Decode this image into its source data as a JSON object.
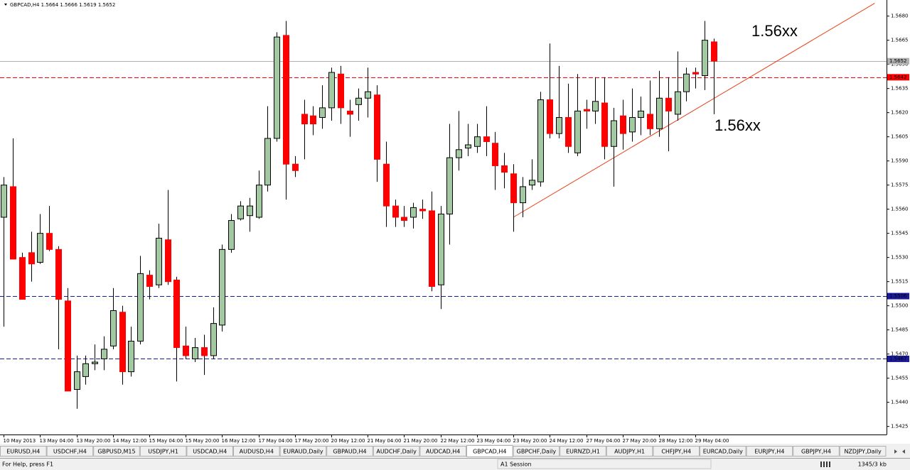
{
  "chart_data": {
    "type": "candlestick",
    "symbol_info": "GBPCAD,H4  1.5664 1.5666 1.5619 1.5652",
    "categories": [
      "10 May 2013",
      null,
      null,
      null,
      "13 May 04:00",
      null,
      null,
      null,
      "13 May 20:00",
      null,
      null,
      null,
      "14 May 12:00",
      null,
      null,
      null,
      "15 May 04:00",
      null,
      null,
      null,
      "15 May 20:00",
      null,
      null,
      null,
      "16 May 12:00",
      null,
      null,
      null,
      "17 May 04:00",
      null,
      null,
      null,
      "17 May 20:00",
      null,
      null,
      null,
      "20 May 12:00",
      null,
      null,
      null,
      "21 May 04:00",
      null,
      null,
      null,
      "21 May 20:00",
      null,
      null,
      null,
      "22 May 12:00",
      null,
      null,
      null,
      "23 May 04:00",
      null,
      null,
      null,
      "23 May 20:00",
      null,
      null,
      null,
      "24 May 12:00",
      null,
      null,
      null,
      "27 May 04:00",
      null,
      null,
      null,
      "27 May 20:00",
      null,
      null,
      null,
      "28 May 12:00",
      null,
      null,
      null,
      "29 May 04:00",
      null,
      null
    ],
    "open": [
      1.5555,
      1.5574,
      1.553,
      1.5533,
      1.5527,
      1.5545,
      1.5535,
      1.5503,
      1.5448,
      1.5456,
      1.5464,
      1.5467,
      1.5475,
      1.5496,
      1.5459,
      1.5478,
      1.5519,
      1.5513,
      1.5541,
      1.5516,
      1.5475,
      1.5467,
      1.5474,
      1.5469,
      1.5488,
      1.5535,
      1.5554,
      1.5556,
      1.5555,
      1.5575,
      1.5604,
      1.5668,
      1.5588,
      1.5619,
      1.5618,
      1.5617,
      1.5623,
      1.5644,
      1.5621,
      1.5625,
      1.5629,
      1.5631,
      1.5588,
      1.5562,
      1.5555,
      1.5555,
      1.556,
      1.5559,
      1.5513,
      1.5557,
      1.5592,
      1.5598,
      1.5599,
      1.5605,
      1.5601,
      1.5587,
      1.5582,
      1.5564,
      1.5575,
      1.5577,
      1.5628,
      1.5607,
      1.5617,
      1.5595,
      1.5622,
      1.5621,
      1.5626,
      1.5599,
      1.5618,
      1.5608,
      1.5617,
      1.5619,
      1.561,
      1.5629,
      1.5619,
      1.5633,
      1.5645,
      1.5643,
      1.5664
    ],
    "high": [
      1.558,
      1.5604,
      1.5533,
      1.5546,
      1.5557,
      1.5562,
      1.5537,
      1.5511,
      1.5469,
      1.5469,
      1.5476,
      1.5481,
      1.5511,
      1.55,
      1.5487,
      1.5531,
      1.5522,
      1.5551,
      1.5572,
      1.5518,
      1.5487,
      1.548,
      1.5482,
      1.5499,
      1.5538,
      1.5557,
      1.5565,
      1.5567,
      1.5584,
      1.5624,
      1.567,
      1.5677,
      1.5593,
      1.5628,
      1.5624,
      1.5637,
      1.5648,
      1.5649,
      1.5628,
      1.5635,
      1.5648,
      1.5637,
      1.5602,
      1.5566,
      1.5562,
      1.5564,
      1.5566,
      1.5571,
      1.5562,
      1.5613,
      1.5621,
      1.5613,
      1.5613,
      1.5624,
      1.5608,
      1.5595,
      1.5588,
      1.558,
      1.5591,
      1.5633,
      1.5663,
      1.5649,
      1.5638,
      1.5644,
      1.5628,
      1.5642,
      1.5642,
      1.5623,
      1.5628,
      1.5635,
      1.563,
      1.564,
      1.5646,
      1.5642,
      1.5658,
      1.5648,
      1.5648,
      1.5677,
      1.5666
    ],
    "low": [
      1.5487,
      1.5529,
      1.5504,
      1.5515,
      1.5526,
      1.5534,
      1.5473,
      1.5447,
      1.5436,
      1.5451,
      1.546,
      1.546,
      1.5473,
      1.5451,
      1.5456,
      1.5476,
      1.5504,
      1.5511,
      1.5513,
      1.5453,
      1.5467,
      1.5465,
      1.5457,
      1.5467,
      1.5484,
      1.5533,
      1.5553,
      1.5546,
      1.5554,
      1.5571,
      1.5602,
      1.5566,
      1.558,
      1.5591,
      1.5606,
      1.561,
      1.5615,
      1.5613,
      1.5605,
      1.5615,
      1.5617,
      1.5577,
      1.5549,
      1.5549,
      1.5549,
      1.5548,
      1.5554,
      1.5509,
      1.5498,
      1.5538,
      1.5584,
      1.5593,
      1.5595,
      1.5593,
      1.5572,
      1.5573,
      1.5546,
      1.5555,
      1.5572,
      1.5574,
      1.5604,
      1.5604,
      1.5595,
      1.5593,
      1.561,
      1.5613,
      1.5591,
      1.5574,
      1.5597,
      1.5602,
      1.5606,
      1.5606,
      1.5605,
      1.5596,
      1.5615,
      1.5627,
      1.5635,
      1.5634,
      1.5619
    ],
    "close": [
      1.5575,
      1.5529,
      1.5504,
      1.5526,
      1.5545,
      1.5535,
      1.5504,
      1.5447,
      1.5459,
      1.5464,
      1.5465,
      1.5473,
      1.5497,
      1.5459,
      1.5478,
      1.552,
      1.5512,
      1.5542,
      1.5515,
      1.5474,
      1.5469,
      1.5474,
      1.5469,
      1.5489,
      1.5535,
      1.5553,
      1.5562,
      1.5562,
      1.5575,
      1.5604,
      1.5667,
      1.5588,
      1.5584,
      1.5613,
      1.5613,
      1.5623,
      1.5645,
      1.5623,
      1.5619,
      1.5629,
      1.5633,
      1.5591,
      1.5562,
      1.5555,
      1.5553,
      1.5561,
      1.5559,
      1.5512,
      1.5557,
      1.5592,
      1.5597,
      1.56,
      1.5605,
      1.5602,
      1.5587,
      1.5583,
      1.5564,
      1.5574,
      1.5578,
      1.5628,
      1.5607,
      1.5617,
      1.5599,
      1.5621,
      1.5621,
      1.5627,
      1.5599,
      1.5615,
      1.5607,
      1.5617,
      1.5621,
      1.561,
      1.5629,
      1.5621,
      1.5633,
      1.5644,
      1.5644,
      1.5665,
      1.5652
    ],
    "up_color": "#a3c9a3",
    "down_color": "#ff0000",
    "xlim": [
      -0.4,
      97
    ],
    "ylim": [
      1.542,
      1.569
    ],
    "grid": false,
    "yticks": [
      1.5425,
      {
        "value": 1.544,
        "label": "1.5440"
      },
      1.5455,
      {
        "value": 1.547,
        "label": "1.5470"
      },
      1.5485,
      {
        "value": 1.55,
        "label": "1.5500"
      },
      1.5515,
      {
        "value": 1.553,
        "label": "1.5530"
      },
      1.5545,
      {
        "value": 1.556,
        "label": "1.5560"
      },
      1.5575,
      {
        "value": 1.559,
        "label": "1.5590"
      },
      1.5605,
      {
        "value": 1.562,
        "label": "1.5620"
      },
      1.5635,
      {
        "value": 1.565,
        "label": "1.5650"
      },
      1.5665,
      {
        "value": 1.568,
        "label": "1.5680"
      }
    ],
    "levels": [
      {
        "value": 1.5652,
        "color": "#b0b0b0",
        "style": "solid"
      },
      {
        "value": 1.5642,
        "color": "#ff0000",
        "style": "dashed"
      },
      {
        "value": 1.5506,
        "color": "#1a1a9c",
        "style": "dashed"
      },
      {
        "value": 1.5467,
        "color": "#1a1a9c",
        "style": "dashed"
      }
    ],
    "trendline": {
      "x": [
        56,
        95.7
      ],
      "y": [
        1.5555,
        1.5688
      ],
      "color": "#e8401a"
    },
    "annotations": [
      {
        "text": "1.56xx",
        "color": "#1a1adc"
      },
      {
        "text": "1.56xx",
        "color": "#e8401a"
      }
    ]
  },
  "tabs": [
    {
      "label": "EURUSD,H4"
    },
    {
      "label": "USDCHF,H4"
    },
    {
      "label": "GBPUSD,M15"
    },
    {
      "label": "USDJPY,H1"
    },
    {
      "label": "USDCAD,H4"
    },
    {
      "label": "AUDUSD,H4"
    },
    {
      "label": "EURAUD,Daily"
    },
    {
      "label": "GBPAUD,H4"
    },
    {
      "label": "AUDCHF,Daily"
    },
    {
      "label": "AUDCAD,H4"
    },
    {
      "label": "GBPCAD,H4",
      "active": true
    },
    {
      "label": "GBPCHF,Daily"
    },
    {
      "label": "EURNZD,H1"
    },
    {
      "label": "AUDJPY,H1"
    },
    {
      "label": "CHFJPY,H4"
    },
    {
      "label": "EURCAD,Daily"
    },
    {
      "label": "EURJPY,H4"
    },
    {
      "label": "GBPJPY,H4"
    },
    {
      "label": "NZDJPY,Daily"
    }
  ],
  "status": {
    "help": "For Help, press F1",
    "profile": "A1 Session",
    "traffic": "1345/3 kb"
  }
}
